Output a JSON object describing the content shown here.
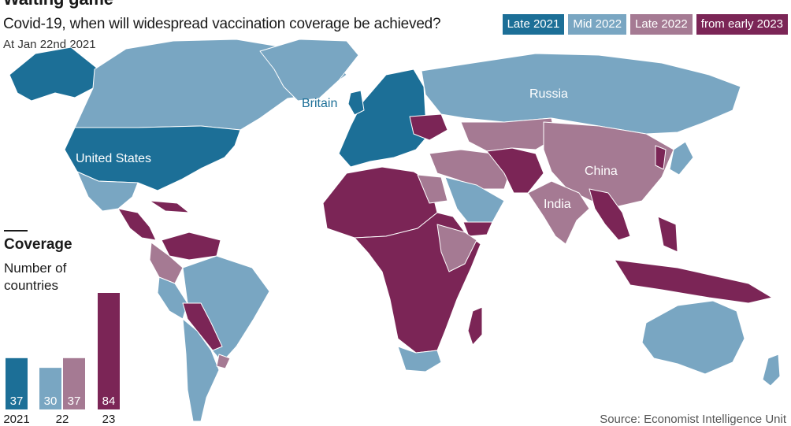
{
  "header": {
    "title": "Waiting game",
    "subtitle": "Covid-19, when will widespread vaccination coverage be achieved?",
    "date_note": "At Jan 22nd 2021"
  },
  "legend": [
    {
      "label": "Late 2021",
      "color": "#1c6f97"
    },
    {
      "label": "Mid 2022",
      "color": "#79a6c2"
    },
    {
      "label": "Late 2022",
      "color": "#a57a93"
    },
    {
      "label": "from early 2023",
      "color": "#7b2556"
    }
  ],
  "map": {
    "labels": {
      "united_states": "United States",
      "britain": "Britain",
      "russia": "Russia",
      "china": "China",
      "india": "India"
    }
  },
  "coverage": {
    "title": "Coverage",
    "subtitle": "Number of countries"
  },
  "source": "Source: Economist Intelligence Unit",
  "chart_data": {
    "type": "bar",
    "title": "Coverage",
    "ylabel": "Number of countries",
    "categories": [
      "2021",
      "22",
      "22",
      "23"
    ],
    "series": [
      {
        "name": "Late 2021",
        "color": "#1c6f97",
        "value": 37,
        "tick": "2021"
      },
      {
        "name": "Mid 2022",
        "color": "#79a6c2",
        "value": 30,
        "tick": "22"
      },
      {
        "name": "Late 2022",
        "color": "#a57a93",
        "value": 37,
        "tick": ""
      },
      {
        "name": "from early 2023",
        "color": "#7b2556",
        "value": 84,
        "tick": "23"
      }
    ],
    "ylim": [
      0,
      84
    ]
  }
}
